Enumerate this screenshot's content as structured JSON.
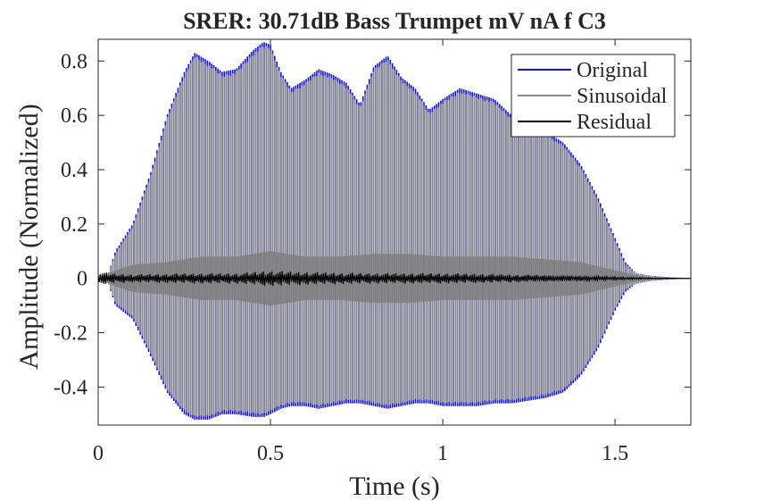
{
  "chart_data": {
    "type": "line",
    "title": "SRER: 30.71dB Bass Trumpet mV nA f C3",
    "xlabel": "Time (s)",
    "ylabel": "Amplitude (Normalized)",
    "xlim": [
      0,
      1.72
    ],
    "ylim": [
      -0.54,
      0.88
    ],
    "xticks": [
      0,
      0.5,
      1,
      1.5
    ],
    "xtick_labels": [
      "0",
      "0.5",
      "1",
      "1.5"
    ],
    "yticks": [
      -0.4,
      -0.2,
      0,
      0.2,
      0.4,
      0.6,
      0.8
    ],
    "ytick_labels": [
      "-0.4",
      "-0.2",
      "0",
      "0.2",
      "0.4",
      "0.6",
      "0.8"
    ],
    "grid": false,
    "legend_position": "top-right",
    "colors": {
      "original": "#1010e0",
      "sinusoidal": "#888888",
      "residual": "#000000",
      "axes": "#262626"
    },
    "series": [
      {
        "name": "Original",
        "envelope_time": [
          0,
          0.03,
          0.05,
          0.1,
          0.15,
          0.2,
          0.25,
          0.28,
          0.32,
          0.36,
          0.4,
          0.45,
          0.48,
          0.5,
          0.53,
          0.56,
          0.6,
          0.64,
          0.68,
          0.72,
          0.76,
          0.8,
          0.84,
          0.88,
          0.92,
          0.96,
          1.0,
          1.05,
          1.1,
          1.15,
          1.2,
          1.25,
          1.3,
          1.35,
          1.4,
          1.45,
          1.5,
          1.53,
          1.56,
          1.6,
          1.65,
          1.72
        ],
        "upper": [
          0,
          0.02,
          0.1,
          0.2,
          0.38,
          0.6,
          0.76,
          0.83,
          0.8,
          0.76,
          0.77,
          0.84,
          0.87,
          0.86,
          0.76,
          0.7,
          0.73,
          0.77,
          0.75,
          0.72,
          0.64,
          0.78,
          0.82,
          0.74,
          0.7,
          0.62,
          0.66,
          0.7,
          0.68,
          0.66,
          0.6,
          0.56,
          0.54,
          0.5,
          0.42,
          0.3,
          0.15,
          0.06,
          0.02,
          0.01,
          0.005,
          0
        ],
        "lower": [
          0,
          -0.02,
          -0.1,
          -0.15,
          -0.28,
          -0.42,
          -0.5,
          -0.52,
          -0.52,
          -0.5,
          -0.5,
          -0.51,
          -0.51,
          -0.5,
          -0.48,
          -0.47,
          -0.47,
          -0.48,
          -0.47,
          -0.46,
          -0.46,
          -0.47,
          -0.48,
          -0.47,
          -0.46,
          -0.46,
          -0.47,
          -0.47,
          -0.47,
          -0.46,
          -0.46,
          -0.45,
          -0.44,
          -0.42,
          -0.36,
          -0.26,
          -0.12,
          -0.05,
          -0.02,
          -0.01,
          -0.005,
          0
        ]
      },
      {
        "name": "Sinusoidal",
        "envelope_time": [
          0,
          0.03,
          0.05,
          0.1,
          0.15,
          0.2,
          0.25,
          0.28,
          0.32,
          0.36,
          0.4,
          0.45,
          0.48,
          0.5,
          0.53,
          0.56,
          0.6,
          0.64,
          0.68,
          0.72,
          0.76,
          0.8,
          0.84,
          0.88,
          0.92,
          0.96,
          1.0,
          1.05,
          1.1,
          1.15,
          1.2,
          1.25,
          1.3,
          1.35,
          1.4,
          1.45,
          1.5,
          1.53,
          1.56,
          1.6,
          1.65,
          1.72
        ],
        "upper": [
          0,
          0.02,
          0.09,
          0.19,
          0.37,
          0.59,
          0.75,
          0.82,
          0.79,
          0.75,
          0.76,
          0.83,
          0.86,
          0.85,
          0.75,
          0.69,
          0.72,
          0.76,
          0.74,
          0.71,
          0.63,
          0.77,
          0.81,
          0.73,
          0.69,
          0.61,
          0.65,
          0.69,
          0.67,
          0.65,
          0.59,
          0.55,
          0.53,
          0.49,
          0.41,
          0.29,
          0.14,
          0.05,
          0.02,
          0.01,
          0.005,
          0
        ],
        "lower": [
          0,
          -0.02,
          -0.09,
          -0.14,
          -0.27,
          -0.41,
          -0.49,
          -0.51,
          -0.51,
          -0.49,
          -0.49,
          -0.5,
          -0.5,
          -0.49,
          -0.47,
          -0.46,
          -0.46,
          -0.47,
          -0.46,
          -0.45,
          -0.45,
          -0.46,
          -0.47,
          -0.46,
          -0.45,
          -0.45,
          -0.46,
          -0.46,
          -0.46,
          -0.45,
          -0.45,
          -0.44,
          -0.43,
          -0.41,
          -0.35,
          -0.25,
          -0.11,
          -0.04,
          -0.02,
          -0.01,
          -0.005,
          0
        ]
      },
      {
        "name": "Residual",
        "envelope_time": [
          0,
          0.03,
          0.1,
          0.2,
          0.3,
          0.4,
          0.5,
          0.6,
          0.7,
          0.8,
          0.9,
          1.0,
          1.1,
          1.2,
          1.3,
          1.4,
          1.5,
          1.55,
          1.6,
          1.72
        ],
        "upper": [
          0.03,
          0.02,
          0.015,
          0.018,
          0.02,
          0.02,
          0.03,
          0.025,
          0.022,
          0.02,
          0.02,
          0.02,
          0.018,
          0.015,
          0.012,
          0.01,
          0.006,
          0.004,
          0.002,
          0
        ],
        "lower": [
          -0.03,
          -0.02,
          -0.015,
          -0.018,
          -0.02,
          -0.02,
          -0.03,
          -0.025,
          -0.022,
          -0.02,
          -0.02,
          -0.02,
          -0.018,
          -0.015,
          -0.012,
          -0.01,
          -0.006,
          -0.004,
          -0.002,
          0
        ]
      }
    ],
    "inner_band": {
      "envelope_time": [
        0,
        0.05,
        0.1,
        0.2,
        0.3,
        0.4,
        0.5,
        0.6,
        0.7,
        0.8,
        0.9,
        1.0,
        1.1,
        1.2,
        1.3,
        1.4,
        1.5,
        1.55,
        1.6,
        1.72
      ],
      "upper": [
        0,
        0.03,
        0.05,
        0.06,
        0.08,
        0.08,
        0.1,
        0.08,
        0.08,
        0.09,
        0.09,
        0.08,
        0.08,
        0.08,
        0.07,
        0.06,
        0.03,
        0.015,
        0.005,
        0
      ],
      "lower": [
        0,
        -0.03,
        -0.05,
        -0.06,
        -0.08,
        -0.08,
        -0.1,
        -0.08,
        -0.08,
        -0.09,
        -0.09,
        -0.08,
        -0.08,
        -0.08,
        -0.07,
        -0.06,
        -0.03,
        -0.015,
        -0.005,
        0
      ]
    }
  }
}
